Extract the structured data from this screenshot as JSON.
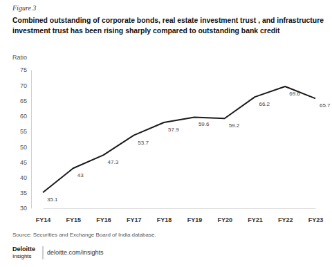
{
  "chart_data": {
    "type": "line",
    "figure_label": "Figure 3",
    "title": [
      "Combined outstanding of corporate bonds, real estate investment trust , and infrastructure",
      "investment trust  has been rising sharply compared to outstanding bank credit"
    ],
    "y_label": "Ratio",
    "categories": [
      "FY14",
      "FY15",
      "FY16",
      "FY17",
      "FY18",
      "FY19",
      "FY20",
      "FY21",
      "FY22",
      "FY23"
    ],
    "values": [
      35.1,
      43,
      47.3,
      53.7,
      57.9,
      59.6,
      59.2,
      66.2,
      69.6,
      65.7
    ],
    "color": "#1a1a1a",
    "ylim": [
      30,
      75
    ],
    "yticks": [
      30,
      35,
      40,
      45,
      50,
      55,
      60,
      65,
      70,
      75
    ],
    "grid": false,
    "data_labels": true,
    "source": "Source: Securities and Exchange Board of India database.",
    "footer": [
      "Deloitte",
      "Insights",
      "deloitte.com/insights"
    ]
  }
}
